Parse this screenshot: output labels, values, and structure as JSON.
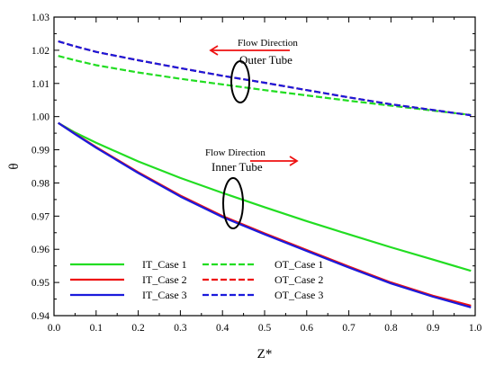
{
  "chart_data": {
    "type": "line",
    "xlabel": "Z*",
    "ylabel": "θ",
    "xlim": [
      0.0,
      1.0
    ],
    "ylim": [
      0.94,
      1.03
    ],
    "x_ticks": [
      "0.0",
      "0.1",
      "0.2",
      "0.3",
      "0.4",
      "0.5",
      "0.6",
      "0.7",
      "0.8",
      "0.9",
      "1.0"
    ],
    "y_ticks": [
      "0.94",
      "0.95",
      "0.96",
      "0.97",
      "0.98",
      "0.99",
      "1.00",
      "1.01",
      "1.02",
      "1.03"
    ],
    "grid": false,
    "legend_position": "bottom-left",
    "x": [
      0.01,
      0.05,
      0.1,
      0.2,
      0.3,
      0.4,
      0.5,
      0.6,
      0.7,
      0.8,
      0.9,
      0.99
    ],
    "series": [
      {
        "name": "IT_Case 1",
        "color": "#22dd22",
        "dash": "solid",
        "values": [
          0.9981,
          0.9952,
          0.9921,
          0.9865,
          0.9815,
          0.977,
          0.9727,
          0.9685,
          0.9645,
          0.9606,
          0.9569,
          0.9535
        ]
      },
      {
        "name": "IT_Case 2",
        "color": "#ee1111",
        "dash": "solid",
        "values": [
          0.9981,
          0.9948,
          0.9908,
          0.9832,
          0.9762,
          0.97,
          0.9648,
          0.9598,
          0.9548,
          0.95,
          0.946,
          0.943
        ]
      },
      {
        "name": "IT_Case 3",
        "color": "#1a1adc",
        "dash": "solid",
        "values": [
          0.9981,
          0.9947,
          0.9906,
          0.983,
          0.9759,
          0.9697,
          0.9645,
          0.9595,
          0.9545,
          0.9497,
          0.9457,
          0.9425
        ]
      },
      {
        "name": "OT_Case 1",
        "color": "#22dd22",
        "dash": "dashed",
        "values": [
          1.0183,
          1.017,
          1.0155,
          1.0133,
          1.0114,
          1.0097,
          1.008,
          1.0064,
          1.0048,
          1.0033,
          1.0018,
          1.0005
        ]
      },
      {
        "name": "OT_Case 2",
        "color": "#ee1111",
        "dash": "dashed",
        "values": [
          1.0227,
          1.0212,
          1.0195,
          1.017,
          1.0146,
          1.0123,
          1.0102,
          1.008,
          1.0058,
          1.0037,
          1.002,
          1.0004
        ]
      },
      {
        "name": "OT_Case 3",
        "color": "#1a1adc",
        "dash": "dashed",
        "values": [
          1.0227,
          1.0212,
          1.0195,
          1.017,
          1.0146,
          1.0123,
          1.0102,
          1.008,
          1.0058,
          1.0037,
          1.002,
          1.0004
        ]
      }
    ],
    "annotations": {
      "outer_flow_label": "Flow Direction",
      "outer_tube_label": "Outer Tube",
      "inner_flow_label": "Flow Direction",
      "inner_tube_label": "Inner Tube",
      "arrow_color": "#ee1111",
      "outer_arrow_direction": "left",
      "inner_arrow_direction": "right"
    }
  }
}
